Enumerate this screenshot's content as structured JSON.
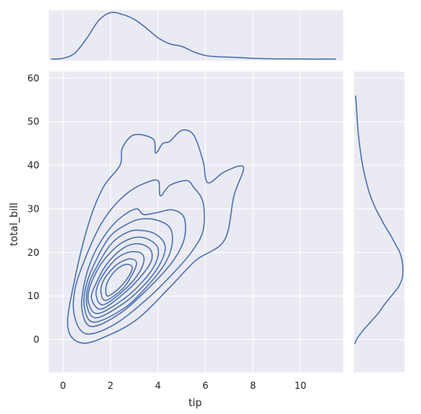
{
  "chart_data": [
    {
      "type": "contour",
      "xlabel": "tip",
      "ylabel": "total_bill",
      "xlim": [
        -0.6,
        11.8
      ],
      "ylim": [
        -7.5,
        61.5
      ],
      "x_ticks": [
        "0",
        "2",
        "4",
        "6",
        "8",
        "10"
      ],
      "y_ticks": [
        "0",
        "10",
        "20",
        "30",
        "40",
        "50",
        "60"
      ],
      "grid": true,
      "series": [
        {
          "levels": [
            [
              [
                0.8,
                -0.8
              ],
              [
                2.0,
                1.2
              ],
              [
                3.2,
                5.0
              ],
              [
                4.5,
                12.0
              ],
              [
                5.6,
                18.2
              ],
              [
                6.8,
                22.8
              ],
              [
                7.2,
                33.0
              ],
              [
                7.6,
                39.6
              ],
              [
                6.8,
                38.5
              ],
              [
                6.1,
                36.0
              ],
              [
                5.9,
                41.0
              ],
              [
                5.5,
                47.0
              ],
              [
                5.0,
                48.0
              ],
              [
                4.5,
                45.5
              ],
              [
                4.2,
                45.0
              ],
              [
                3.9,
                42.8
              ],
              [
                3.8,
                46.0
              ],
              [
                3.0,
                47.0
              ],
              [
                2.5,
                44.0
              ],
              [
                2.4,
                40.0
              ],
              [
                1.7,
                35.0
              ],
              [
                1.1,
                27.0
              ],
              [
                0.5,
                14.0
              ],
              [
                0.2,
                3.0
              ],
              [
                0.8,
                -0.8
              ]
            ],
            [
              [
                1.0,
                1.3
              ],
              [
                2.2,
                3.6
              ],
              [
                3.6,
                9.6
              ],
              [
                4.6,
                15.0
              ],
              [
                5.4,
                20.0
              ],
              [
                5.9,
                25.0
              ],
              [
                5.9,
                31.5
              ],
              [
                5.5,
                35.0
              ],
              [
                5.2,
                36.5
              ],
              [
                4.5,
                35.4
              ],
              [
                4.1,
                33.0
              ],
              [
                4.0,
                36.5
              ],
              [
                3.4,
                35.8
              ],
              [
                2.8,
                34.0
              ],
              [
                2.2,
                31.0
              ],
              [
                1.6,
                26.5
              ],
              [
                1.0,
                19.5
              ],
              [
                0.5,
                11.5
              ],
              [
                0.5,
                5.0
              ],
              [
                1.0,
                1.3
              ]
            ],
            [
              [
                1.2,
                3.0
              ],
              [
                2.4,
                6.0
              ],
              [
                3.6,
                11.8
              ],
              [
                4.6,
                17.8
              ],
              [
                5.1,
                23.0
              ],
              [
                5.1,
                28.0
              ],
              [
                4.6,
                29.8
              ],
              [
                4.0,
                29.2
              ],
              [
                3.4,
                28.7
              ],
              [
                3.1,
                30.0
              ],
              [
                2.5,
                28.3
              ],
              [
                1.9,
                25.0
              ],
              [
                1.3,
                19.6
              ],
              [
                0.9,
                13.0
              ],
              [
                0.8,
                6.8
              ],
              [
                1.2,
                3.0
              ]
            ],
            [
              [
                1.3,
                4.0
              ],
              [
                2.6,
                7.3
              ],
              [
                3.6,
                12.6
              ],
              [
                4.3,
                17.5
              ],
              [
                4.6,
                22.0
              ],
              [
                4.5,
                25.7
              ],
              [
                3.9,
                27.5
              ],
              [
                3.2,
                27.6
              ],
              [
                2.6,
                26.2
              ],
              [
                2.0,
                23.8
              ],
              [
                1.5,
                19.4
              ],
              [
                1.0,
                13.0
              ],
              [
                0.9,
                7.5
              ],
              [
                1.3,
                4.0
              ]
            ],
            [
              [
                1.4,
                5.0
              ],
              [
                2.6,
                8.5
              ],
              [
                3.5,
                13.0
              ],
              [
                4.1,
                17.5
              ],
              [
                4.3,
                21.5
              ],
              [
                3.9,
                24.2
              ],
              [
                3.2,
                25.1
              ],
              [
                2.7,
                24.6
              ],
              [
                2.1,
                22.4
              ],
              [
                1.6,
                18.5
              ],
              [
                1.1,
                13.0
              ],
              [
                1.0,
                8.0
              ],
              [
                1.4,
                5.0
              ]
            ],
            [
              [
                1.5,
                6.0
              ],
              [
                2.6,
                9.5
              ],
              [
                3.4,
                13.6
              ],
              [
                3.9,
                17.5
              ],
              [
                4.0,
                21.0
              ],
              [
                3.6,
                23.0
              ],
              [
                3.1,
                23.5
              ],
              [
                2.5,
                22.3
              ],
              [
                2.0,
                20.0
              ],
              [
                1.5,
                16.5
              ],
              [
                1.1,
                11.5
              ],
              [
                1.1,
                8.0
              ],
              [
                1.5,
                6.0
              ]
            ],
            [
              [
                1.6,
                7.0
              ],
              [
                2.5,
                10.3
              ],
              [
                3.2,
                14.0
              ],
              [
                3.7,
                17.8
              ],
              [
                3.7,
                20.5
              ],
              [
                3.3,
                21.9
              ],
              [
                2.8,
                21.7
              ],
              [
                2.3,
                20.0
              ],
              [
                1.8,
                17.0
              ],
              [
                1.4,
                13.0
              ],
              [
                1.2,
                9.5
              ],
              [
                1.6,
                7.0
              ]
            ],
            [
              [
                1.7,
                8.0
              ],
              [
                2.5,
                11.0
              ],
              [
                3.1,
                14.5
              ],
              [
                3.4,
                17.8
              ],
              [
                3.3,
                19.8
              ],
              [
                2.8,
                20.1
              ],
              [
                2.3,
                18.8
              ],
              [
                1.9,
                16.5
              ],
              [
                1.5,
                13.0
              ],
              [
                1.4,
                10.0
              ],
              [
                1.7,
                8.0
              ]
            ],
            [
              [
                1.8,
                9.0
              ],
              [
                2.5,
                11.6
              ],
              [
                2.9,
                14.8
              ],
              [
                3.1,
                17.5
              ],
              [
                2.9,
                18.5
              ],
              [
                2.5,
                18.0
              ],
              [
                2.1,
                16.4
              ],
              [
                1.7,
                13.5
              ],
              [
                1.6,
                10.8
              ],
              [
                1.8,
                9.0
              ]
            ],
            [
              [
                1.9,
                10.0
              ],
              [
                2.4,
                12.0
              ],
              [
                2.8,
                14.8
              ],
              [
                2.9,
                16.8
              ],
              [
                2.6,
                17.2
              ],
              [
                2.2,
                15.8
              ],
              [
                1.9,
                13.5
              ],
              [
                1.8,
                11.4
              ],
              [
                1.9,
                10.0
              ]
            ]
          ]
        }
      ]
    },
    {
      "type": "kde",
      "axis": "x",
      "x": [
        -0.5,
        0.0,
        0.5,
        1.0,
        1.5,
        2.0,
        2.5,
        3.0,
        3.5,
        4.0,
        4.5,
        5.0,
        5.5,
        6.0,
        6.5,
        7.0,
        7.5,
        8.0,
        8.5,
        9.0,
        9.5,
        10.0,
        10.5,
        11.0,
        11.5
      ],
      "density": [
        0.006,
        0.012,
        0.055,
        0.175,
        0.32,
        0.385,
        0.37,
        0.33,
        0.26,
        0.18,
        0.13,
        0.11,
        0.065,
        0.035,
        0.026,
        0.022,
        0.018,
        0.012,
        0.01,
        0.008,
        0.008,
        0.007,
        0.006,
        0.006,
        0.006
      ],
      "grid": true
    },
    {
      "type": "kde",
      "axis": "y",
      "y": [
        -1,
        0,
        2,
        4,
        6,
        8,
        10,
        12,
        14,
        16,
        18,
        20,
        22,
        24,
        26,
        28,
        30,
        33,
        36,
        40,
        44,
        48,
        52,
        56
      ],
      "density": [
        0.0,
        0.002,
        0.01,
        0.02,
        0.03,
        0.038,
        0.047,
        0.056,
        0.061,
        0.062,
        0.061,
        0.058,
        0.052,
        0.046,
        0.039,
        0.033,
        0.027,
        0.02,
        0.015,
        0.01,
        0.0065,
        0.004,
        0.0025,
        0.001
      ],
      "grid": true
    }
  ],
  "colors": {
    "panel_bg": "#eaeaf2",
    "grid": "#ffffff",
    "line": "#4c72b0",
    "text": "#262626"
  }
}
